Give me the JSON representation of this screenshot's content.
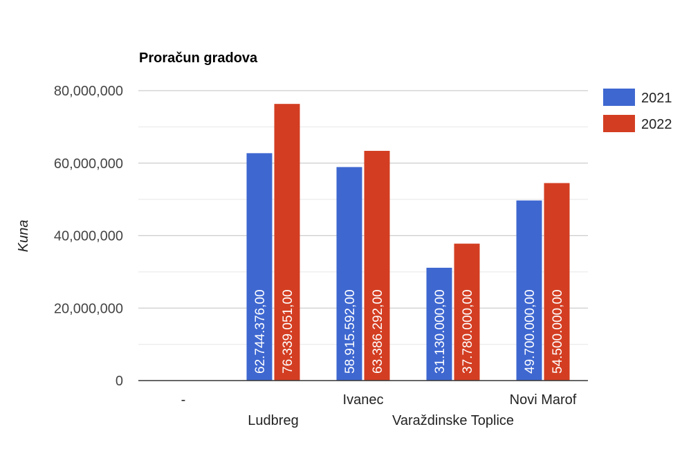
{
  "chart_data": {
    "type": "bar",
    "title": "Proračun gradova",
    "xlabel": "",
    "ylabel": "Kuna",
    "categories": [
      "-",
      "Ludbreg",
      "Ivanec",
      "Varaždinske Toplice",
      "Novi Marof"
    ],
    "series": [
      {
        "name": "2021",
        "color": "#3e67d0",
        "values": [
          0,
          62744376,
          58915592,
          31130000,
          49700000
        ],
        "labels": [
          "",
          "62.744.376,00",
          "58.915.592,00",
          "31.130.000,00",
          "49.700.000,00"
        ]
      },
      {
        "name": "2022",
        "color": "#d33e22",
        "values": [
          0,
          76339051,
          63386292,
          37780000,
          54500000
        ],
        "labels": [
          "",
          "76.339.051,00",
          "63.386.292,00",
          "37.780.000,00",
          "54.500.000,00"
        ]
      }
    ],
    "ylim": [
      0,
      80000000
    ],
    "yticks": [
      0,
      20000000,
      40000000,
      60000000,
      80000000
    ],
    "ytick_labels": [
      "0",
      "20,000,000",
      "40,000,000",
      "60,000,000",
      "80,000,000"
    ],
    "grid": true,
    "legend_position": "right"
  }
}
